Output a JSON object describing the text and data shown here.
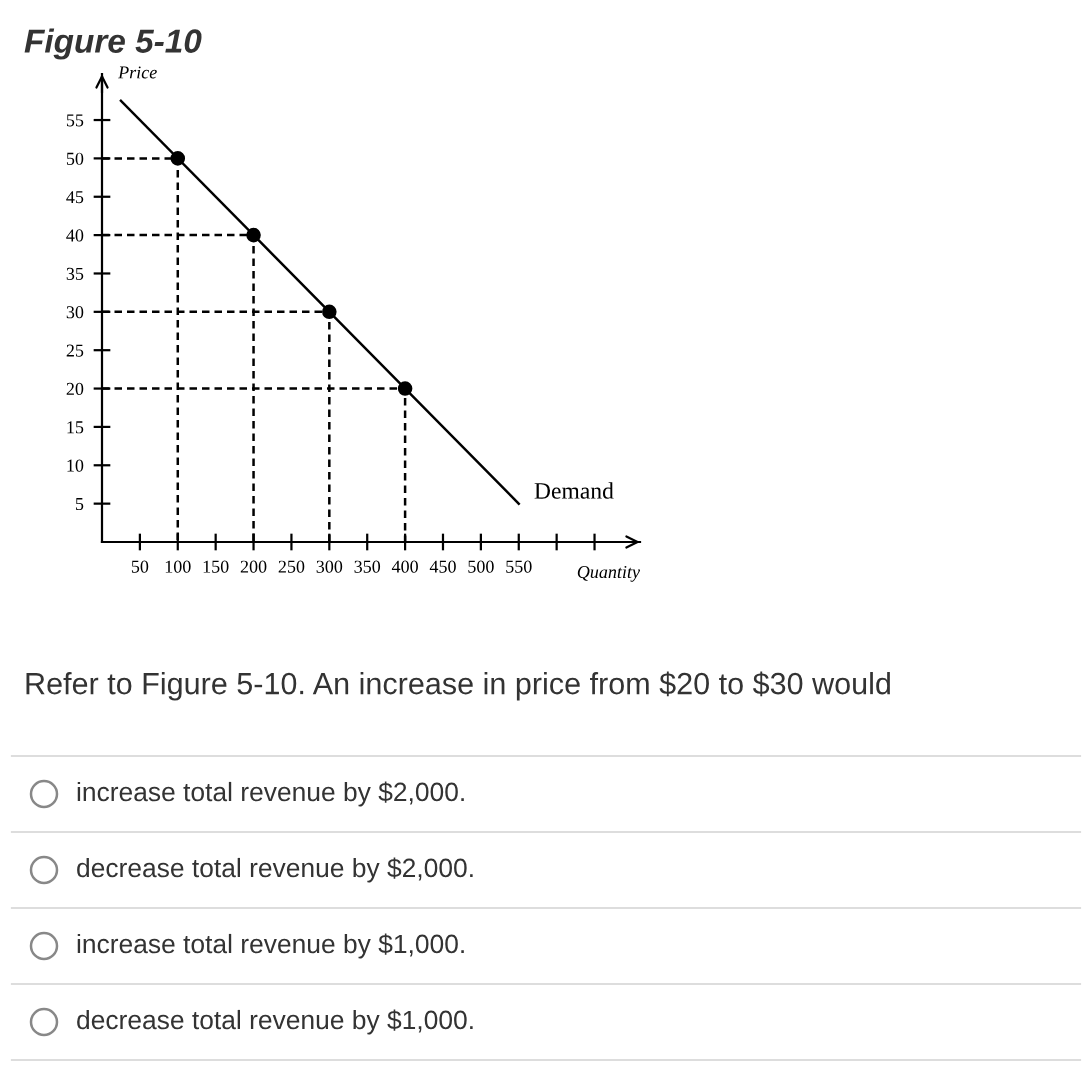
{
  "chart_data": {
    "type": "line",
    "title": "Figure 5-10",
    "xlabel": "Quantity",
    "ylabel": "Price",
    "xlim": [
      0,
      710
    ],
    "ylim": [
      0,
      61
    ],
    "xticks": [
      50,
      100,
      150,
      200,
      250,
      300,
      350,
      400,
      450,
      500,
      550,
      {
        "value": 600,
        "label": null
      },
      {
        "value": 650,
        "label": null
      }
    ],
    "yticks": [
      5,
      10,
      15,
      20,
      25,
      30,
      35,
      40,
      45,
      50,
      55
    ],
    "grid": false,
    "legend": false,
    "series": [
      {
        "line_style": "dashed",
        "marker": "none",
        "color": "#000000",
        "x": [
          0,
          100,
          100
        ],
        "values": [
          50,
          50,
          0
        ]
      },
      {
        "line_style": "dashed",
        "marker": "none",
        "color": "#000000",
        "x": [
          0,
          200,
          200
        ],
        "values": [
          40,
          40,
          0
        ]
      },
      {
        "line_style": "dashed",
        "marker": "none",
        "color": "#000000",
        "x": [
          0,
          300,
          300
        ],
        "values": [
          30,
          30,
          0
        ]
      },
      {
        "line_style": "dashed",
        "marker": "none",
        "color": "#000000",
        "x": [
          0,
          400,
          400
        ],
        "values": [
          20,
          20,
          0
        ]
      },
      {
        "name": "Demand",
        "line_style": "solid",
        "marker": "none",
        "color": "#000000",
        "x": [
          25,
          550
        ],
        "values": [
          57.5,
          5
        ]
      },
      {
        "type": "scatter",
        "marker": "circle",
        "color": "#000000",
        "x": [
          100,
          200,
          300,
          400
        ],
        "values": [
          50,
          40,
          30,
          20
        ]
      }
    ],
    "annotations": [
      "Refer to Figure 5-10. An increase in price from $20 to $30 would",
      "increase total revenue by $2,000.",
      "decrease total revenue by $2,000.",
      "increase total revenue by $1,000.",
      "decrease total revenue by $1,000."
    ]
  }
}
